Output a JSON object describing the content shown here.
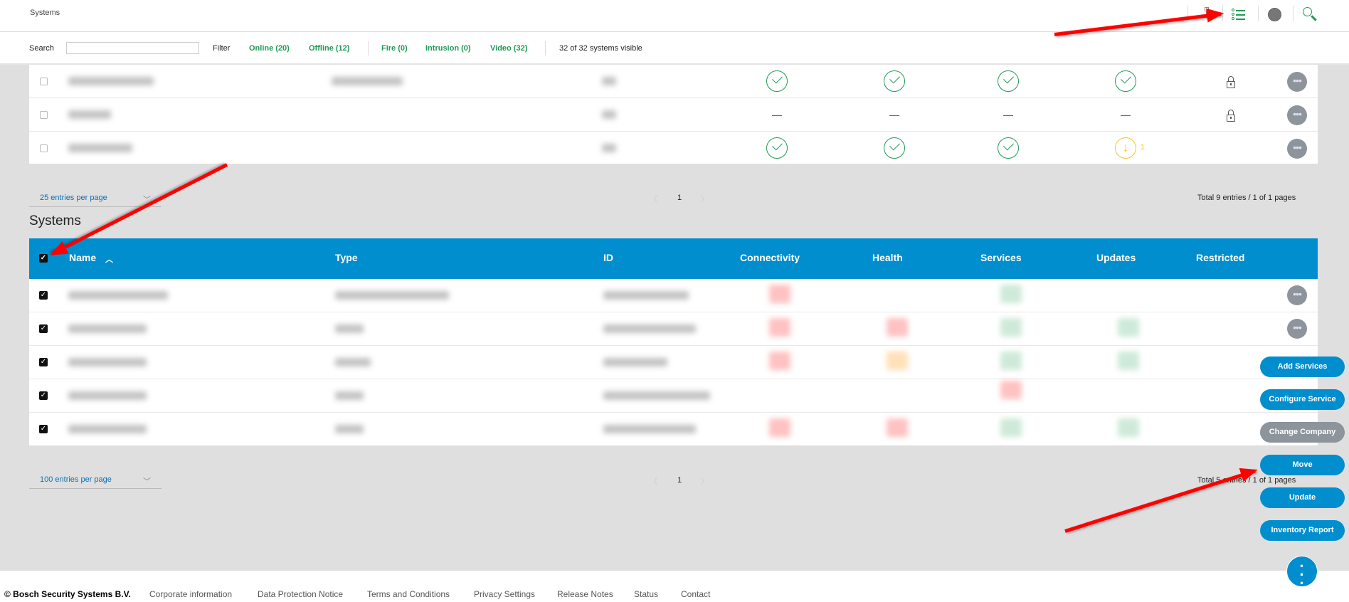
{
  "header": {
    "title": "Systems",
    "icons": [
      "network-icon",
      "list-icon",
      "globe-icon",
      "search-icon"
    ]
  },
  "filterbar": {
    "search_label": "Search",
    "search_value": "",
    "filter_label": "Filter",
    "filters": [
      "Online (20)",
      "Offline (12)",
      "Fire (0)",
      "Intrusion (0)",
      "Video (32)"
    ],
    "visible_count": "32 of 32 systems visible"
  },
  "upper_table": {
    "rows": [
      {
        "connectivity": "ok",
        "health": "ok",
        "services": "ok",
        "updates": "ok",
        "restricted": true
      },
      {
        "connectivity": "none",
        "health": "none",
        "services": "none",
        "updates": "none",
        "restricted": true
      },
      {
        "connectivity": "ok",
        "health": "ok",
        "services": "ok",
        "updates": "download",
        "updates_count": "1",
        "restricted": false
      }
    ],
    "per_page": "25 entries per page",
    "page": "1",
    "total": "Total 9 entries / 1 of 1 pages"
  },
  "systems": {
    "title": "Systems",
    "columns": [
      "Name",
      "Type",
      "ID",
      "Connectivity",
      "Health",
      "Services",
      "Updates",
      "Restricted"
    ],
    "row_count_checked": 5,
    "per_page": "100 entries per page",
    "page": "1",
    "total": "Total 5 entries / 1 of 1 pages"
  },
  "actions": [
    "Add Services",
    "Configure Service",
    "Change Company",
    "Move",
    "Update",
    "Inventory Report"
  ],
  "colors": {
    "accent": "#008ecf",
    "ok": "#1f9a55",
    "warning": "#f6c232",
    "disabled": "#8d949b",
    "annotation": "#ff0000"
  },
  "footer": {
    "copyright": "© Bosch Security Systems B.V.",
    "links": [
      "Corporate information",
      "Data Protection Notice",
      "Terms and Conditions",
      "Privacy Settings",
      "Release Notes",
      "Status",
      "Contact"
    ]
  }
}
